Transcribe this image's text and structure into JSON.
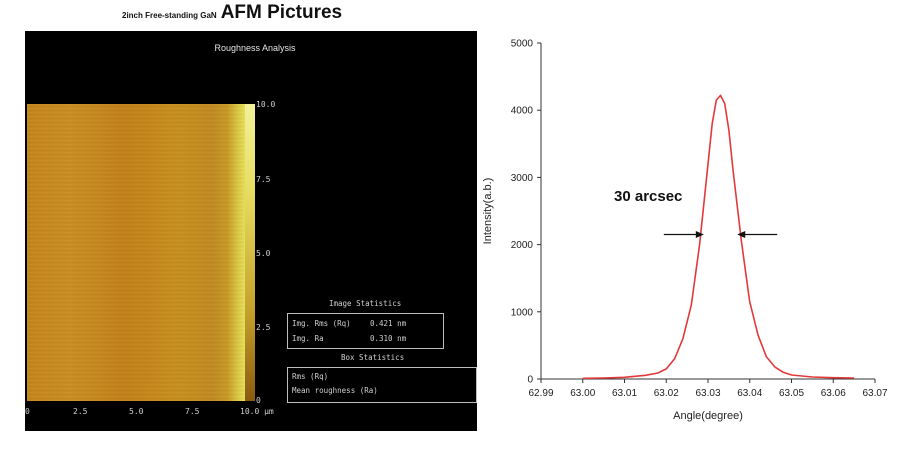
{
  "header": {
    "small": "2inch Free-standing GaN",
    "big": "AFM Pictures"
  },
  "afm": {
    "title": "Roughness Analysis",
    "colorbar_ticks": [
      "10.0",
      "7.5",
      "5.0",
      "2.5",
      "0"
    ],
    "x_ticks": [
      "0",
      "2.5",
      "5.0",
      "7.5",
      "10.0 µm"
    ],
    "image_stats_title": "Image Statistics",
    "rms_label": "Img. Rms (Rq)",
    "rms_value": "0.421 nm",
    "ra_label": "Img. Ra",
    "ra_value": "0.310 nm",
    "box_stats_title": "Box Statistics",
    "box_rms_label": "Rms (Rq)",
    "box_mean_label": "Mean roughness (Ra)"
  },
  "chart_data": {
    "type": "line",
    "xlabel": "Angle(degree)",
    "ylabel": "Intensity(a.b.)",
    "xlim": [
      62.99,
      63.07
    ],
    "ylim": [
      0,
      5000
    ],
    "x_ticks": [
      "62.99",
      "63.00",
      "63.01",
      "63.02",
      "63.03",
      "63.04",
      "63.05",
      "63.06",
      "63.07"
    ],
    "y_ticks": [
      "0",
      "1000",
      "2000",
      "3000",
      "4000",
      "5000"
    ],
    "series": [
      {
        "color": "#e23a3a",
        "x": [
          63.0,
          63.005,
          63.01,
          63.015,
          63.018,
          63.02,
          63.022,
          63.024,
          63.026,
          63.028,
          63.03,
          63.031,
          63.032,
          63.033,
          63.034,
          63.035,
          63.036,
          63.038,
          63.04,
          63.042,
          63.044,
          63.046,
          63.048,
          63.05,
          63.055,
          63.06,
          63.065
        ],
        "y": [
          10,
          15,
          25,
          55,
          90,
          150,
          300,
          600,
          1100,
          2000,
          3200,
          3800,
          4150,
          4220,
          4100,
          3700,
          3100,
          2050,
          1150,
          650,
          330,
          180,
          100,
          60,
          30,
          20,
          15
        ]
      }
    ],
    "annotation": {
      "text": "30 arcsec",
      "y": 2150,
      "left_x": 63.029,
      "right_x": 63.037
    }
  }
}
